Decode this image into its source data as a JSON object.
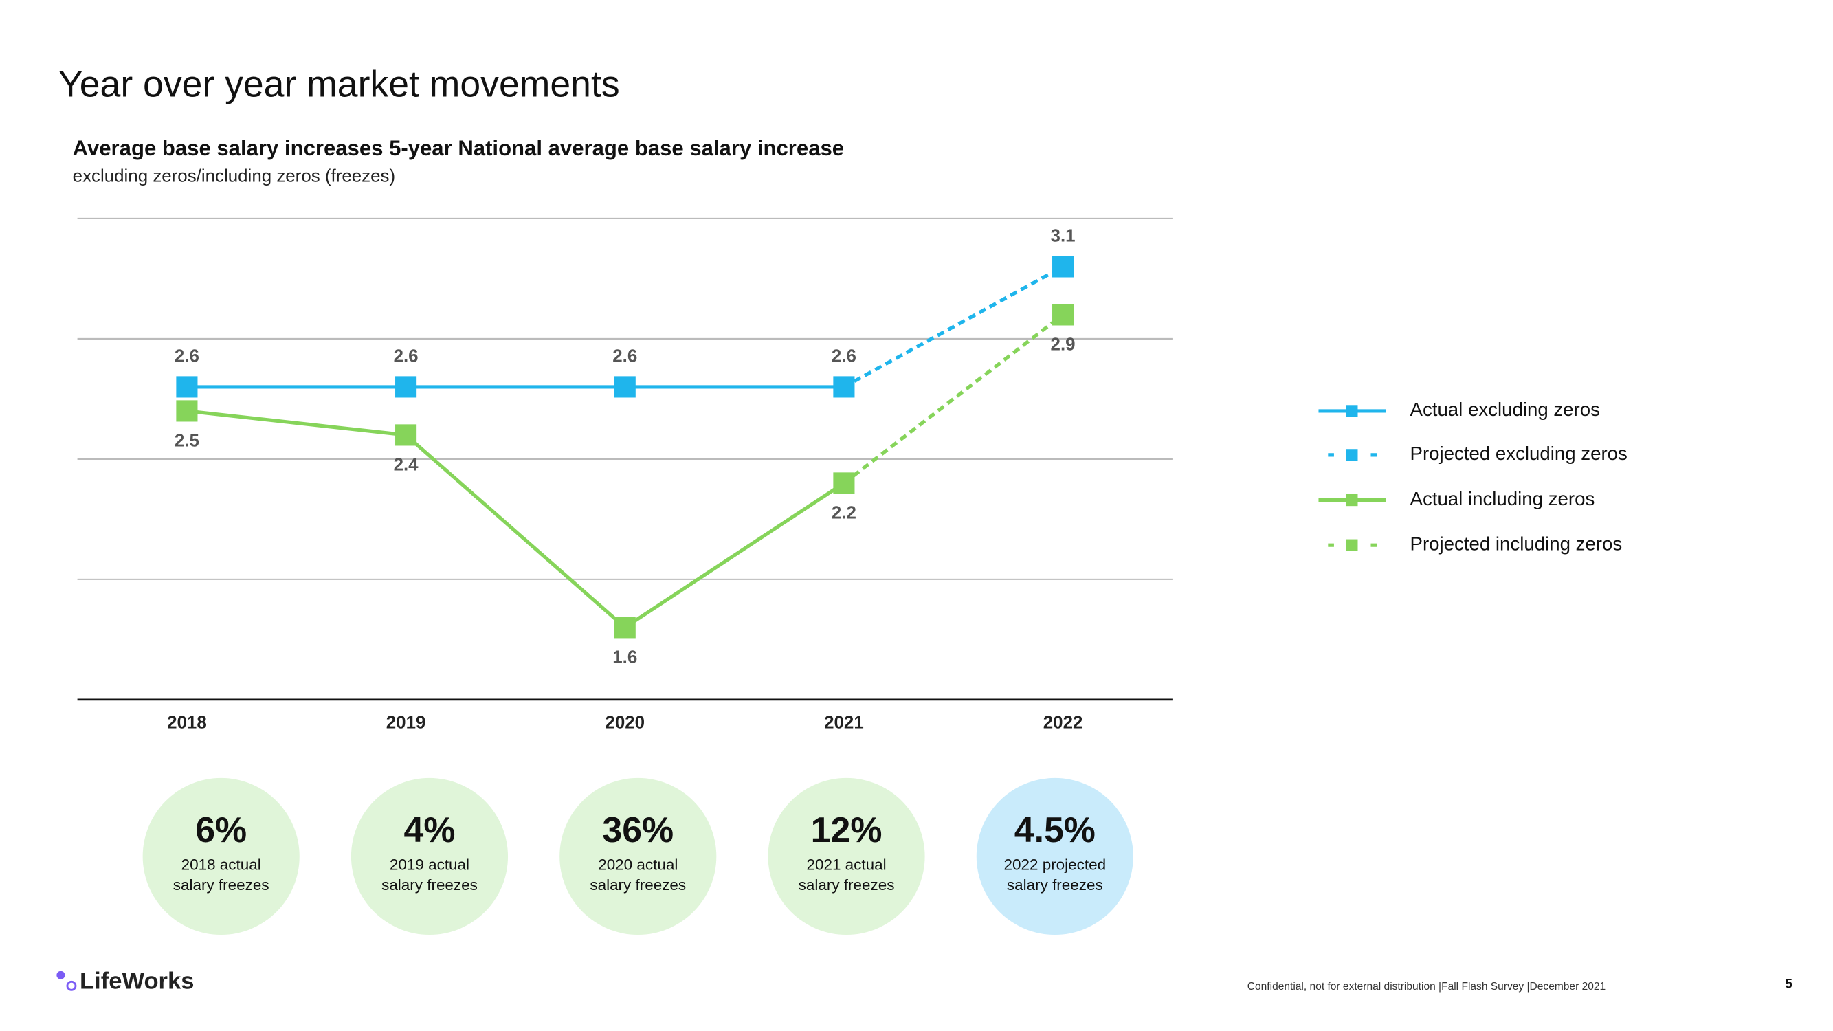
{
  "title": "Year over year market movements",
  "chart_data": {
    "type": "line",
    "title": "Average base salary increases 5-year National average base salary increase",
    "subtitle": "excluding zeros/including zeros (freezes)",
    "categories": [
      "2018",
      "2019",
      "2020",
      "2021",
      "2022"
    ],
    "series": [
      {
        "name": "Actual excluding zeros",
        "color": "#1fb5ec",
        "dashed": false,
        "label_side": "above",
        "values": [
          2.6,
          2.6,
          2.6,
          2.6,
          null
        ]
      },
      {
        "name": "Projected excluding zeros",
        "color": "#1fb5ec",
        "dashed": true,
        "label_side": "above",
        "values": [
          null,
          null,
          null,
          2.6,
          3.1
        ]
      },
      {
        "name": "Actual including zeros",
        "color": "#86d45a",
        "dashed": false,
        "label_side": "below",
        "values": [
          2.5,
          2.4,
          1.6,
          2.2,
          null
        ]
      },
      {
        "name": "Projected including zeros",
        "color": "#86d45a",
        "dashed": true,
        "label_side": "below",
        "values": [
          null,
          null,
          null,
          2.2,
          2.9
        ]
      }
    ],
    "ylim": [
      1.3,
      3.3
    ],
    "yticks": [
      1.3,
      1.8,
      2.3,
      2.8,
      3.3
    ],
    "grid": true,
    "legend": "right"
  },
  "stats": [
    {
      "value": "6%",
      "lines": [
        "2018 actual",
        "salary freezes"
      ],
      "color": "#e0f5d9"
    },
    {
      "value": "4%",
      "lines": [
        "2019 actual",
        "salary freezes"
      ],
      "color": "#e0f5d9"
    },
    {
      "value": "36%",
      "lines": [
        "2020 actual",
        "salary freezes"
      ],
      "color": "#e0f5d9"
    },
    {
      "value": "12%",
      "lines": [
        "2021 actual",
        "salary freezes"
      ],
      "color": "#e0f5d9"
    },
    {
      "value": "4.5%",
      "lines": [
        "2022 projected",
        "salary freezes"
      ],
      "color": "#c9ebfb"
    }
  ],
  "footer": {
    "logo": "LifeWorks",
    "note": "Confidential, not for external distribution  |Fall Flash Survey  |December 2021",
    "page": "5"
  }
}
